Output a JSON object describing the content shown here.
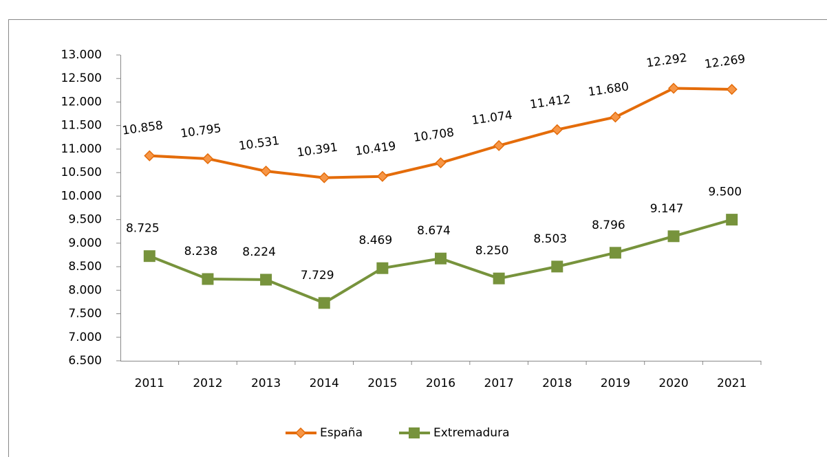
{
  "chart_data": {
    "type": "line",
    "categories": [
      "2011",
      "2012",
      "2013",
      "2014",
      "2015",
      "2016",
      "2017",
      "2018",
      "2019",
      "2020",
      "2021"
    ],
    "series": [
      {
        "name": "España",
        "color": "#e46c0a",
        "marker": "diamond",
        "values": [
          10858,
          10795,
          10531,
          10391,
          10419,
          10708,
          11074,
          11412,
          11680,
          12292,
          12269
        ],
        "value_labels": [
          "10.858",
          "10.795",
          "10.531",
          "10.391",
          "10.419",
          "10.708",
          "11.074",
          "11.412",
          "11.680",
          "12.292",
          "12.269"
        ]
      },
      {
        "name": "Extremadura",
        "color": "#77933c",
        "marker": "square",
        "values": [
          8725,
          8238,
          8224,
          7729,
          8469,
          8674,
          8250,
          8503,
          8796,
          9147,
          9500
        ],
        "value_labels": [
          "8.725",
          "8.238",
          "8.224",
          "7.729",
          "8.469",
          "8.674",
          "8.250",
          "8.503",
          "8.796",
          "9.147",
          "9.500"
        ]
      }
    ],
    "ylim": [
      6500,
      13000
    ],
    "yticks": [
      {
        "value": 6500,
        "label": "6.500"
      },
      {
        "value": 7000,
        "label": "7.000"
      },
      {
        "value": 7500,
        "label": "7.500"
      },
      {
        "value": 8000,
        "label": "8.000"
      },
      {
        "value": 8500,
        "label": "8.500"
      },
      {
        "value": 9000,
        "label": "9.000"
      },
      {
        "value": 9500,
        "label": "9.500"
      },
      {
        "value": 10000,
        "label": "10.000"
      },
      {
        "value": 10500,
        "label": "10.500"
      },
      {
        "value": 11000,
        "label": "11.000"
      },
      {
        "value": 11500,
        "label": "11.500"
      },
      {
        "value": 12000,
        "label": "12.000"
      },
      {
        "value": 12500,
        "label": "12.500"
      },
      {
        "value": 13000,
        "label": "13.000"
      }
    ],
    "grid": false,
    "legend": "bottom"
  }
}
